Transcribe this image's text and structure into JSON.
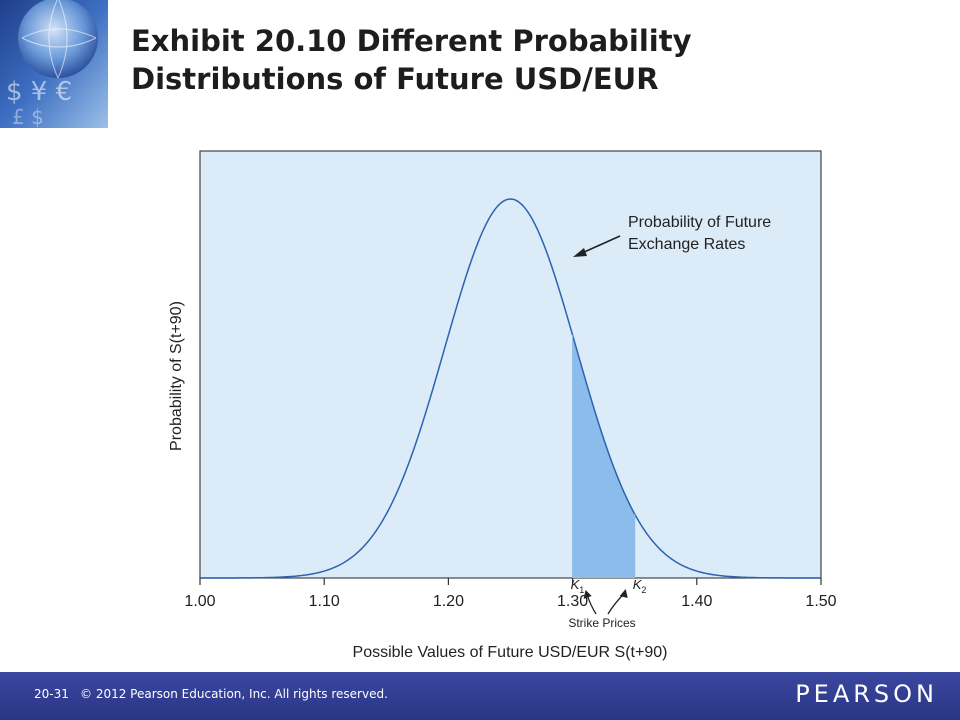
{
  "slide": {
    "title_line1": "Exhibit 20.10  Different Probability",
    "title_line2": "Distributions of Future USD/EUR"
  },
  "footer": {
    "slide_number": "20-31",
    "copyright": "© 2012 Pearson Education, Inc. All rights reserved.",
    "brand": "PEARSON"
  },
  "colors": {
    "plot_bg": "#dcebf8",
    "shaded": "#8bbcec",
    "curve": "#2b63b0",
    "footer_bg": "#2f3b8f"
  },
  "chart_data": {
    "type": "area",
    "xlabel": "Possible Values of Future USD/EUR S(t+90)",
    "ylabel": "Probability of S(t+90)",
    "xlim": [
      1.0,
      1.5
    ],
    "x_ticks": [
      "1.00",
      "1.10",
      "1.20",
      "1.30",
      "1.40",
      "1.50"
    ],
    "distribution": {
      "shape": "normal",
      "mean": 1.25,
      "std_dev": 0.053
    },
    "shaded_region": [
      1.3,
      1.35
    ],
    "markers": [
      {
        "label": "K",
        "subscript": "1",
        "x": 1.3
      },
      {
        "label": "K",
        "subscript": "2",
        "x": 1.35
      }
    ],
    "annotations": {
      "curve_line1": "Probability of Future",
      "curve_line2": "Exchange Rates",
      "strike": "Strike Prices"
    },
    "grid": false
  }
}
